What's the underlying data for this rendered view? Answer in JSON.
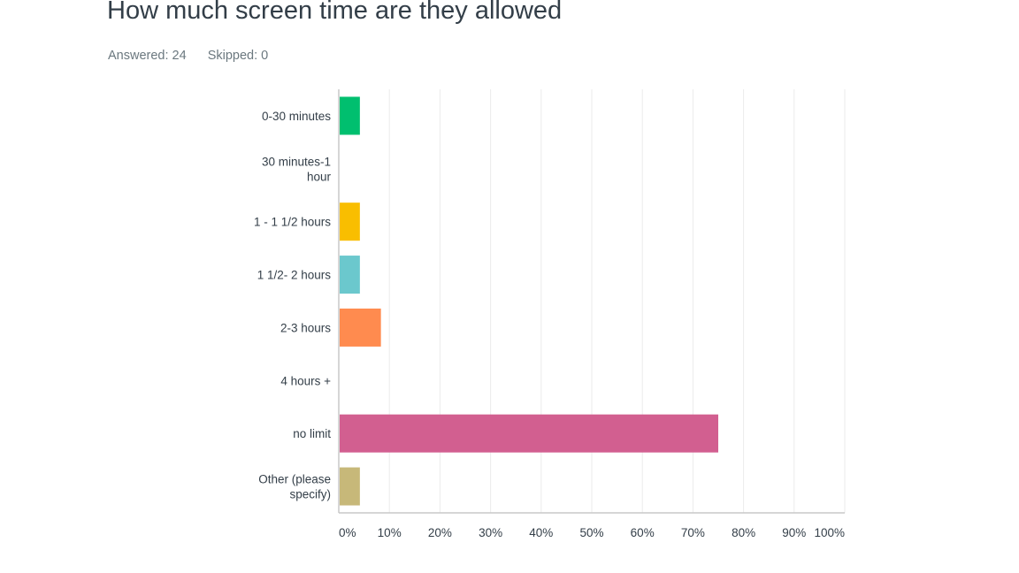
{
  "question": {
    "title": "How much screen time are they allowed",
    "answered_label": "Answered: 24",
    "skipped_label": "Skipped: 0"
  },
  "chart_data": {
    "type": "bar",
    "orientation": "horizontal",
    "categories": [
      [
        "0-30 minutes"
      ],
      [
        "30 minutes-1",
        "hour"
      ],
      [
        "1 - 1 1/2 hours"
      ],
      [
        "1 1/2- 2 hours"
      ],
      [
        "2-3 hours"
      ],
      [
        "4 hours +"
      ],
      [
        "no limit"
      ],
      [
        "Other (please",
        "specify)"
      ]
    ],
    "values": [
      4.17,
      0,
      4.17,
      4.17,
      8.33,
      0,
      75.0,
      4.17
    ],
    "colors": [
      "#00bf6f",
      "#507cb6",
      "#f9be00",
      "#6bc8cd",
      "#ff8b4f",
      "#7f7fff",
      "#d25f90",
      "#c7b879"
    ],
    "x_ticks": [
      "0%",
      "10%",
      "20%",
      "30%",
      "40%",
      "50%",
      "60%",
      "70%",
      "80%",
      "90%",
      "100%"
    ],
    "xlim": [
      0,
      100
    ],
    "grid": true,
    "gridline_color": "#ebebeb",
    "axis_color": "#c8c8c8"
  }
}
